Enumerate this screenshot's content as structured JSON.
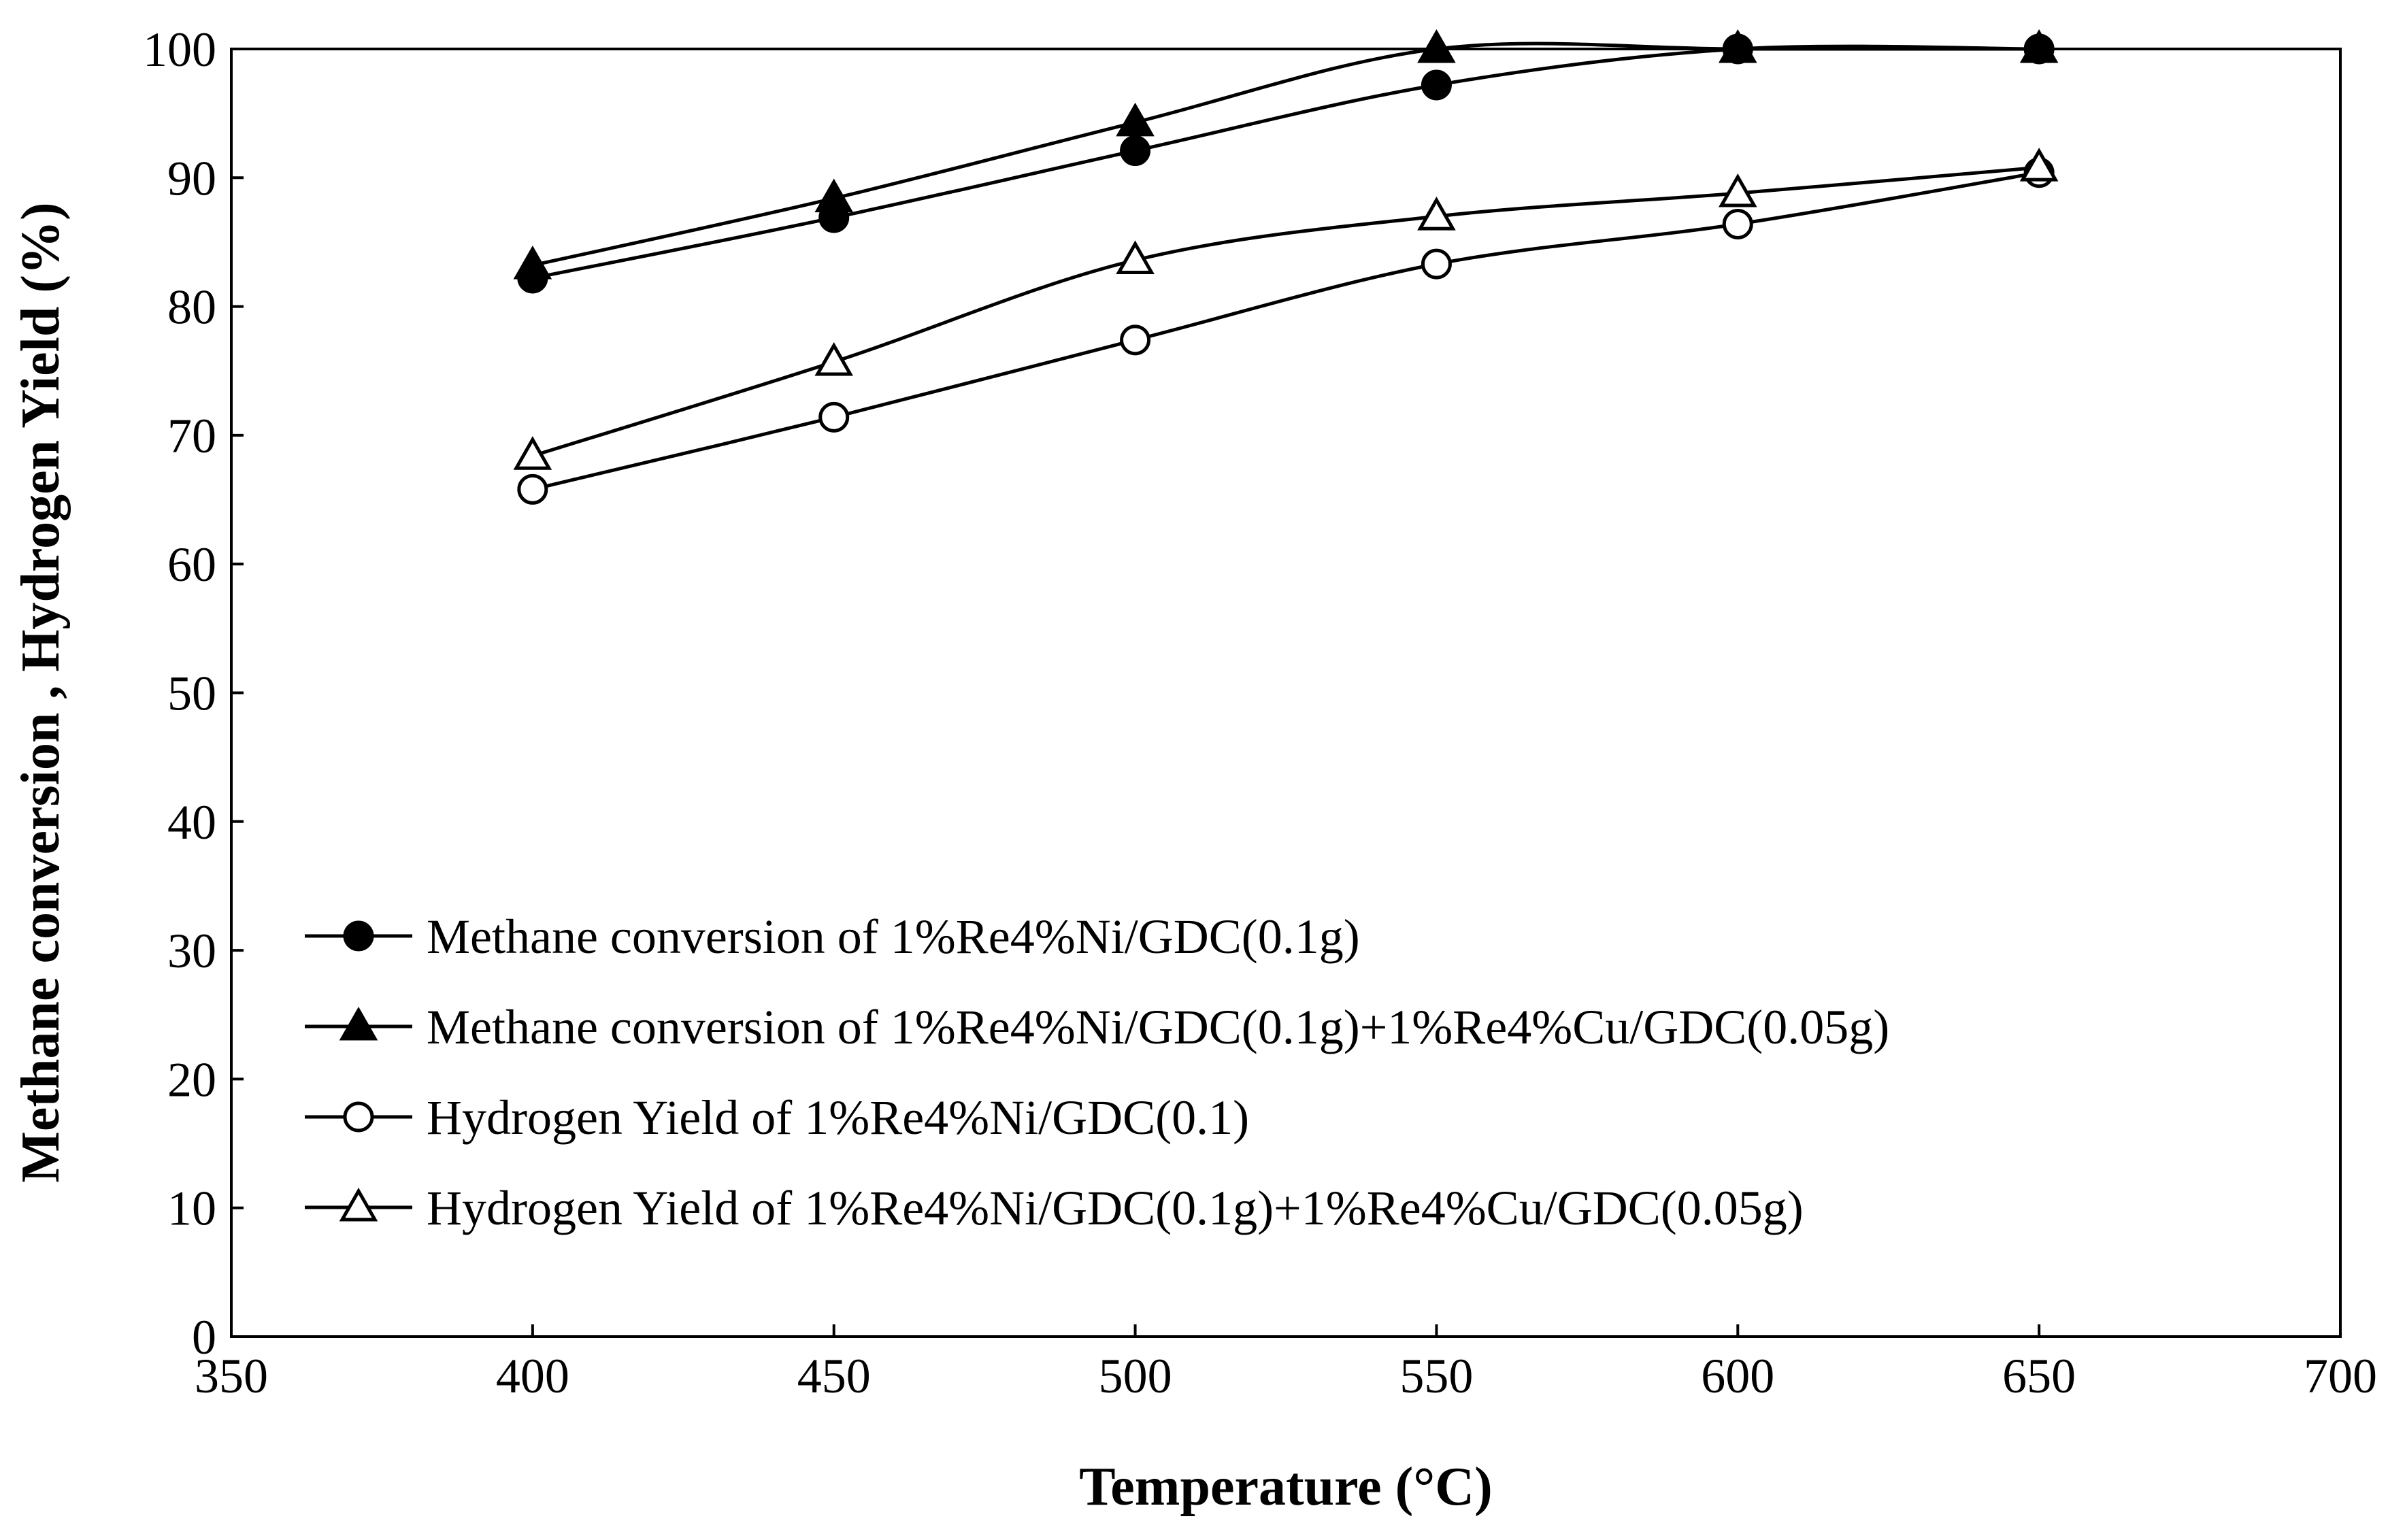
{
  "chart_data": {
    "type": "line",
    "title": "",
    "xlabel": "Temperature (°C)",
    "ylabel": "Methane conversion , Hydrogen Yield (%)",
    "xlim": [
      350,
      700
    ],
    "ylim": [
      0,
      100
    ],
    "xticks": [
      350,
      400,
      450,
      500,
      550,
      600,
      650,
      700
    ],
    "yticks": [
      0,
      10,
      20,
      30,
      40,
      50,
      60,
      70,
      80,
      90,
      100
    ],
    "grid": false,
    "legend_position": "bottom-left",
    "x": [
      400,
      450,
      500,
      550,
      600,
      650
    ],
    "series": [
      {
        "name": "Methane conversion of 1%Re4%Ni/GDC(0.1g)",
        "marker": "filled-circle",
        "values": [
          82.2,
          86.9,
          92.1,
          97.2,
          100,
          100
        ]
      },
      {
        "name": "Methane conversion of 1%Re4%Ni/GDC(0.1g)+1%Re4%Cu/GDC(0.05g)",
        "marker": "filled-triangle",
        "values": [
          83.2,
          88.4,
          94.3,
          100,
          100,
          100
        ]
      },
      {
        "name": "Hydrogen Yield of 1%Re4%Ni/GDC(0.1)",
        "marker": "open-circle",
        "values": [
          65.8,
          71.4,
          77.4,
          83.3,
          86.4,
          90.4
        ]
      },
      {
        "name": "Hydrogen Yield of 1%Re4%Ni/GDC(0.1g)+1%Re4%Cu/GDC(0.05g)",
        "marker": "open-triangle",
        "values": [
          68.4,
          75.7,
          83.6,
          87.0,
          88.8,
          90.8
        ]
      }
    ],
    "colors": {
      "line": "#000000",
      "background": "#ffffff"
    }
  }
}
